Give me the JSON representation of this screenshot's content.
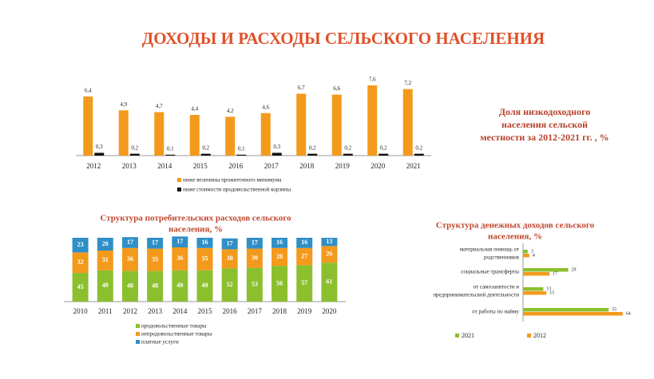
{
  "title": "ДОХОДЫ И РАСХОДЫ СЕЛЬСКОГО НАСЕЛЕНИЯ",
  "chart_data": [
    {
      "type": "bar",
      "annotation": [
        "Доля низкодоходного",
        "населения сельской",
        "местности за 2012-2021 гг. , %"
      ],
      "categories": [
        "2012",
        "2013",
        "2014",
        "2015",
        "2016",
        "2017",
        "2018",
        "2019",
        "2020",
        "2021"
      ],
      "series": [
        {
          "name": "ниже величины прожиточного минимума",
          "color": "#f39a1c",
          "values": [
            6.4,
            4.9,
            4.7,
            4.4,
            4.2,
            4.6,
            6.7,
            6.6,
            7.6,
            7.2
          ],
          "value_labels": [
            "6,4",
            "4,9",
            "4,7",
            "4,4",
            "4,2",
            "4,6",
            "6,7",
            "6,6",
            "7,6",
            "7,2"
          ]
        },
        {
          "name": "ниже стоимости продовольственной корзины",
          "color": "#111111",
          "values": [
            0.3,
            0.2,
            0.1,
            0.2,
            0.1,
            0.3,
            0.2,
            0.2,
            0.2,
            0.2
          ],
          "value_labels": [
            "0,3",
            "0,2",
            "0,1",
            "0,2",
            "0,1",
            "0,3",
            "0,2",
            "0,2",
            "0,2",
            "0,2"
          ]
        }
      ]
    },
    {
      "type": "stacked_bar",
      "title": [
        "Структура потребительских расходов сельского",
        "населения, %"
      ],
      "categories": [
        "2010",
        "2011",
        "2012",
        "2013",
        "2014",
        "2015",
        "2016",
        "2017",
        "2018",
        "2019",
        "2020"
      ],
      "series": [
        {
          "name": "продовольственные товары",
          "color": "#8cbf2e",
          "values": [
            45,
            49,
            48,
            48,
            49,
            49,
            52,
            53,
            56,
            57,
            61
          ]
        },
        {
          "name": "непродовольственные товары",
          "color": "#f39a1c",
          "values": [
            32,
            31,
            36,
            35,
            36,
            35,
            30,
            30,
            28,
            27,
            26
          ]
        },
        {
          "name": "платные услуги",
          "color": "#2f8fc6",
          "values": [
            23,
            20,
            17,
            17,
            17,
            16,
            17,
            17,
            16,
            16,
            13
          ]
        }
      ]
    },
    {
      "type": "hbar",
      "title": [
        "Структура денежных доходов сельского",
        "населения, %"
      ],
      "categories": [
        [
          "материальная помощь от",
          "родственников"
        ],
        [
          "социальные трансферты"
        ],
        [
          "от самозанятости и",
          "предпринимательской деятельности"
        ],
        [
          "от работы по найму"
        ]
      ],
      "series": [
        {
          "name": "2021",
          "color": "#8cbf2e",
          "values": [
            3,
            29,
            13,
            55
          ]
        },
        {
          "name": "2012",
          "color": "#f39a1c",
          "values": [
            4,
            17,
            15,
            64
          ]
        }
      ]
    }
  ]
}
